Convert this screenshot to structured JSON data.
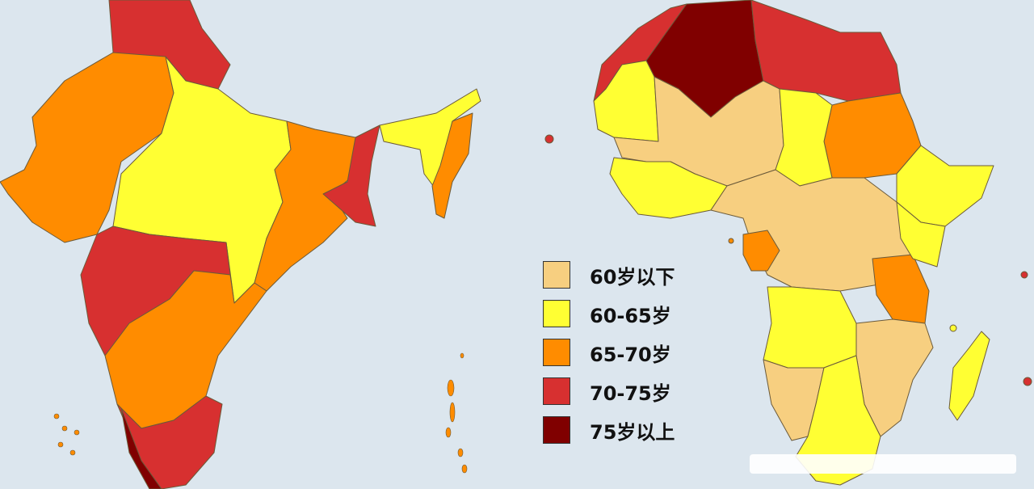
{
  "colors": {
    "background": "#dce6ee",
    "under_60": "#f7cf80",
    "60_65": "#ffff33",
    "65_70": "#ff8c00",
    "70_75": "#d73030",
    "over_75": "#800000"
  },
  "legend": [
    {
      "key": "under_60",
      "label": "60岁以下"
    },
    {
      "key": "60_65",
      "label": "60-65岁"
    },
    {
      "key": "65_70",
      "label": "65-70岁"
    },
    {
      "key": "70_75",
      "label": "70-75岁"
    },
    {
      "key": "over_75",
      "label": "75岁以上"
    }
  ],
  "maps": [
    {
      "name": "india",
      "region_classes": [
        "70_75",
        "65_70",
        "60_65",
        "70_75",
        "65_70",
        "70_75",
        "65_70",
        "60_65",
        "65_70",
        "70_75"
      ]
    },
    {
      "name": "africa",
      "region_classes": [
        "over_75",
        "70_75",
        "60_65",
        "under_60",
        "65_70",
        "60_65",
        "under_60",
        "60_65",
        "65_70",
        "under_60"
      ]
    }
  ]
}
